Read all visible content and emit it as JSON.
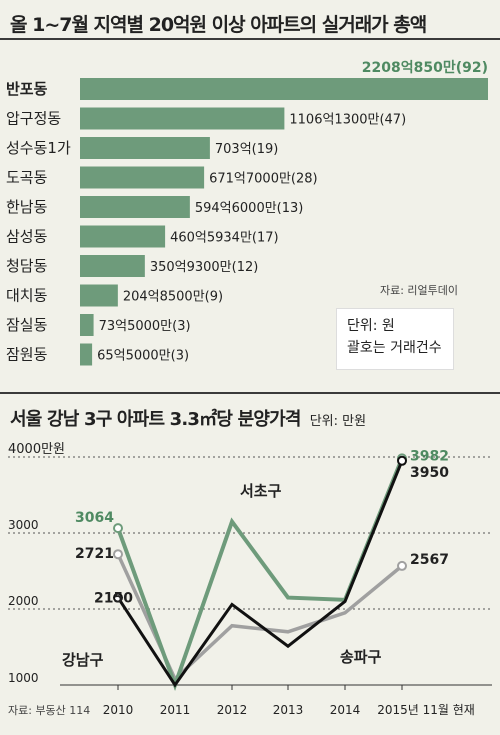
{
  "header": {
    "title": "올 1~7월 지역별 20억원 이상 아파트의 실거래가 총액"
  },
  "note": {
    "unit": "단위: 원",
    "paren": "괄호는 거래건수"
  },
  "header2": {
    "title": "서울 강남 3구 아파트 3.3㎡당 분양가격",
    "unit": "단위: 만원"
  },
  "chart_data": [
    {
      "type": "bar",
      "orientation": "horizontal",
      "title": "올 1~7월 지역별 20억원 이상 아파트의 실거래가 총액",
      "categories": [
        "반포동",
        "압구정동",
        "성수동1가",
        "도곡동",
        "한남동",
        "삼성동",
        "청담동",
        "대치동",
        "잠실동",
        "잠원동"
      ],
      "values": [
        2208.085,
        1106.13,
        703,
        671.7,
        594.6,
        460.5934,
        350.93,
        204.85,
        73.5,
        65.5
      ],
      "value_unit": "억원",
      "labels": [
        "2208억850만(92)",
        "1106억1300만(47)",
        "703억(19)",
        "671억7000만(28)",
        "594억6000만(13)",
        "460억5934만(17)",
        "350억9300만(12)",
        "204억8500만(9)",
        "73억5000만(3)",
        "65억5000만(3)"
      ],
      "counts": [
        92,
        47,
        19,
        28,
        13,
        17,
        12,
        9,
        3,
        3
      ],
      "source": "자료: 리얼투데이",
      "color": "#6e9b7b"
    },
    {
      "type": "line",
      "title": "서울 강남 3구 아파트 3.3㎡당 분양가격",
      "x": [
        "2010",
        "2011",
        "2012",
        "2013",
        "2014",
        "2015년 11월 현재"
      ],
      "ylim": [
        1000,
        4000
      ],
      "yticks": [
        1000,
        2000,
        3000
      ],
      "ytop_label": "4000만원",
      "series": [
        {
          "name": "서초구",
          "values": [
            3064,
            1000,
            3150,
            2150,
            2120,
            3982
          ],
          "color": "#6e9b7b"
        },
        {
          "name": "송파구",
          "values": [
            2721,
            1080,
            1780,
            1700,
            1950,
            2567
          ],
          "color": "#a0a0a0"
        },
        {
          "name": "강남구",
          "values": [
            2150,
            1000,
            2060,
            1510,
            2100,
            3950
          ],
          "color": "#111111"
        }
      ],
      "value_labels": {
        "서초구": [
          "3064",
          "3982"
        ],
        "송파구": [
          "2721",
          "2567"
        ],
        "강남구": [
          "2150",
          "3950"
        ]
      },
      "source": "자료: 부동산 114"
    }
  ]
}
